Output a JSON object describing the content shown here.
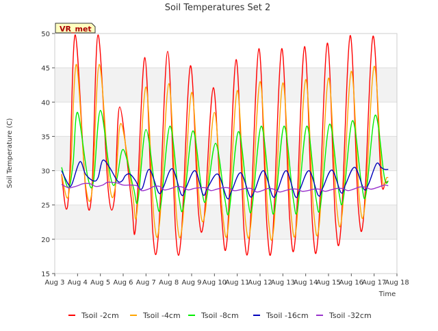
{
  "chart_data": {
    "type": "line",
    "title": "Soil Temperatures Set 2",
    "xlabel": "Time",
    "ylabel": "Soil Temperature (C)",
    "station_label": "VR_met",
    "xlim": [
      3,
      18
    ],
    "ylim": [
      15,
      50
    ],
    "x_ticks": [
      3,
      4,
      5,
      6,
      7,
      8,
      9,
      10,
      11,
      12,
      13,
      14,
      15,
      16,
      17,
      18
    ],
    "x_tick_labels": [
      "Aug 3",
      "Aug 4",
      "Aug 5",
      "Aug 6",
      "Aug 7",
      "Aug 8",
      "Aug 9",
      "Aug 10",
      "Aug 11",
      "Aug 12",
      "Aug 13",
      "Aug 14",
      "Aug 15",
      "Aug 16",
      "Aug 17",
      "Aug 18"
    ],
    "y_ticks": [
      15,
      20,
      25,
      30,
      35,
      40,
      45,
      50
    ],
    "y_tick_labels": [
      "15",
      "20",
      "25",
      "30",
      "35",
      "40",
      "45",
      "50"
    ],
    "grid": true,
    "legend_position": "bottom",
    "series": [
      {
        "name": "Tsoil -2cm",
        "color": "#ff0000",
        "x": [
          3.3,
          3.5,
          3.65,
          3.9,
          4.35,
          4.62,
          4.9,
          5.35,
          5.62,
          5.85,
          6.35,
          6.55,
          6.95,
          7.3,
          7.55,
          7.95,
          8.3,
          8.55,
          8.95,
          9.3,
          9.55,
          9.95,
          10.3,
          10.55,
          10.95,
          11.3,
          11.55,
          11.95,
          12.3,
          12.55,
          12.95,
          13.3,
          13.55,
          13.95,
          14.3,
          14.55,
          14.95,
          15.3,
          15.55,
          15.95,
          16.3,
          16.55,
          16.95,
          17.3,
          17.5,
          17.62
        ],
        "y": [
          29.5,
          24.4,
          29,
          49.8,
          27.5,
          26.7,
          49.8,
          27,
          26,
          39.3,
          26,
          21.9,
          46.5,
          21,
          21,
          47.4,
          21,
          20.7,
          45.3,
          24,
          23.1,
          42.1,
          24,
          19.8,
          46.2,
          21,
          20.9,
          47.8,
          22,
          20.2,
          47.8,
          23,
          20.4,
          48.1,
          22,
          20.7,
          48.6,
          23,
          21.9,
          49.7,
          25,
          23.7,
          49.6,
          29,
          28.4,
          28.4
        ]
      },
      {
        "name": "Tsoil -4cm",
        "color": "#ffa500",
        "x": [
          3.3,
          3.55,
          3.7,
          3.95,
          4.35,
          4.65,
          4.95,
          5.4,
          5.65,
          5.9,
          6.4,
          6.6,
          7.0,
          7.35,
          7.6,
          8.0,
          8.35,
          8.6,
          9.0,
          9.35,
          9.6,
          10.0,
          10.35,
          10.6,
          11.0,
          11.35,
          11.6,
          12.0,
          12.35,
          12.6,
          13.0,
          13.35,
          13.6,
          14.0,
          14.35,
          14.6,
          15.0,
          15.35,
          15.6,
          16.0,
          16.35,
          16.6,
          17.0,
          17.35,
          17.55,
          17.62
        ],
        "y": [
          29.5,
          26,
          30,
          45.5,
          28,
          27.5,
          45.5,
          28,
          27.5,
          36.9,
          27,
          23.8,
          42.2,
          23,
          22.5,
          42.7,
          23,
          22.3,
          41.4,
          25,
          24,
          38.5,
          24,
          21.6,
          41.7,
          23,
          22.3,
          43,
          23.5,
          21.6,
          42.8,
          24,
          22,
          43.3,
          24,
          22.3,
          43.5,
          25,
          23.7,
          44.5,
          26,
          25,
          45.2,
          29,
          29,
          29
        ]
      },
      {
        "name": "Tsoil -8cm",
        "color": "#00ee00",
        "x": [
          3.3,
          3.6,
          3.8,
          4.0,
          4.45,
          4.7,
          5.0,
          5.45,
          5.7,
          6.0,
          6.45,
          6.65,
          7.0,
          7.45,
          7.65,
          8.05,
          8.45,
          8.65,
          9.05,
          9.45,
          9.65,
          10.05,
          10.45,
          10.65,
          11.05,
          11.45,
          11.65,
          12.05,
          12.45,
          12.65,
          13.05,
          13.45,
          13.65,
          14.05,
          14.45,
          14.65,
          15.05,
          15.45,
          15.65,
          16.05,
          16.45,
          16.65,
          17.05,
          17.45,
          17.62
        ],
        "y": [
          30.5,
          27.5,
          31,
          38.5,
          29,
          28.5,
          38.8,
          29,
          28.5,
          33.1,
          27.5,
          25.7,
          36,
          26,
          25,
          36.5,
          26,
          24.9,
          35.8,
          27,
          26,
          34,
          26,
          24.2,
          35.7,
          26,
          24.7,
          36.5,
          26,
          24.5,
          36.5,
          26,
          24.5,
          36.5,
          26,
          24.9,
          36.8,
          27,
          25.9,
          37.3,
          28,
          26.7,
          38.1,
          29,
          28.5
        ]
      },
      {
        "name": "Tsoil -16cm",
        "color": "#0000bb",
        "x": [
          3.3,
          3.6,
          3.75,
          4.1,
          4.35,
          4.7,
          4.9,
          5.1,
          5.4,
          5.75,
          5.95,
          6.1,
          6.3,
          6.55,
          6.7,
          6.85,
          7.15,
          7.55,
          7.75,
          8.15,
          8.55,
          8.75,
          9.15,
          9.5,
          9.7,
          10.15,
          10.55,
          10.75,
          11.15,
          11.55,
          11.75,
          12.15,
          12.55,
          12.75,
          13.15,
          13.55,
          13.75,
          14.15,
          14.55,
          14.75,
          15.15,
          15.55,
          15.75,
          16.15,
          16.55,
          16.75,
          17.1,
          17.3,
          17.45,
          17.62
        ],
        "y": [
          30,
          28,
          28,
          31.3,
          29.5,
          28.5,
          29,
          31.5,
          30.5,
          28.5,
          28.5,
          29.3,
          29.5,
          28.5,
          27.5,
          27.5,
          30.2,
          26.8,
          27.5,
          30.3,
          26.5,
          27.5,
          30,
          26.5,
          27.5,
          29.5,
          26,
          27,
          29.7,
          26.3,
          27,
          30,
          26.3,
          27,
          30,
          26.2,
          27.3,
          30,
          26.4,
          27.5,
          30.1,
          26.8,
          28,
          30.5,
          27.3,
          28,
          31,
          30.5,
          30.2,
          30.2
        ]
      },
      {
        "name": "Tsoil -32cm",
        "color": "#9932cc",
        "x": [
          3.3,
          3.6,
          3.8,
          4.0,
          4.25,
          4.55,
          4.8,
          5.1,
          5.3,
          5.5,
          5.75,
          6.0,
          6.3,
          6.6,
          6.8,
          7.1,
          7.35,
          7.6,
          7.8,
          8.1,
          8.35,
          8.6,
          8.85,
          9.1,
          9.35,
          9.6,
          9.85,
          10.1,
          10.35,
          10.6,
          10.85,
          11.1,
          11.35,
          11.6,
          11.85,
          12.1,
          12.35,
          12.6,
          12.85,
          13.1,
          13.35,
          13.6,
          13.85,
          14.1,
          14.35,
          14.6,
          14.85,
          15.1,
          15.35,
          15.6,
          15.85,
          16.1,
          16.35,
          16.6,
          16.85,
          17.1,
          17.35,
          17.5,
          17.62
        ],
        "y": [
          28,
          27.5,
          27.6,
          27.8,
          28.1,
          28.1,
          27.7,
          27.9,
          28.3,
          28.3,
          28.2,
          27.9,
          27.9,
          27.8,
          27.1,
          27.3,
          27.7,
          27.7,
          27.2,
          27.4,
          27.7,
          27.6,
          27.2,
          27.4,
          27.5,
          27.5,
          27.1,
          27.3,
          27.5,
          27.5,
          27.1,
          27.2,
          27.4,
          27.4,
          26.9,
          27.1,
          27.4,
          27.3,
          26.9,
          27.1,
          27.3,
          27.3,
          27,
          27.1,
          27.3,
          27.3,
          27,
          27.2,
          27.4,
          27.4,
          27.1,
          27.3,
          27.6,
          27.6,
          27.3,
          27.5,
          27.8,
          27.9,
          27.8
        ]
      }
    ]
  }
}
